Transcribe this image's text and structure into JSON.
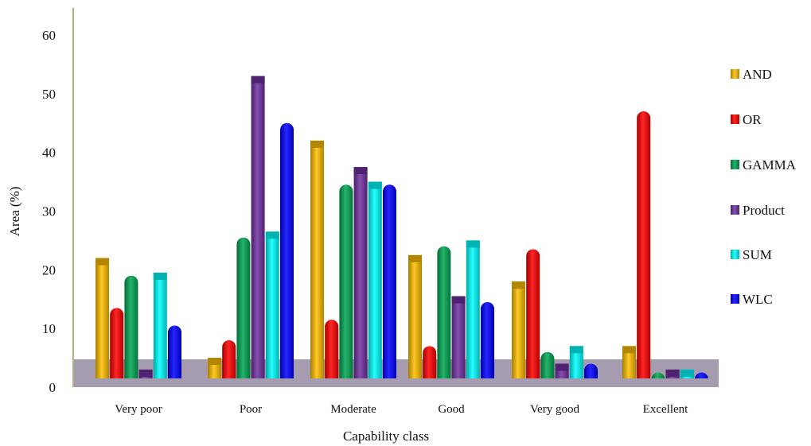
{
  "chart_data": {
    "type": "bar",
    "xlabel": "Capability class",
    "ylabel": "Area (%)",
    "ylim": [
      0,
      60
    ],
    "yticks": [
      "0",
      "10",
      "20",
      "30",
      "40",
      "50",
      "60"
    ],
    "grid": false,
    "legend_position": "right",
    "categories": [
      "Very poor",
      "Poor",
      "Moderate",
      "Good",
      "Very good",
      "Excellent"
    ],
    "series": [
      {
        "name": "AND",
        "color": "#FFC000",
        "values": [
          22,
          5,
          42,
          22.5,
          18,
          7
        ]
      },
      {
        "name": "OR",
        "color": "#FF0000",
        "values": [
          13.5,
          8,
          11.5,
          7,
          23.5,
          47
        ]
      },
      {
        "name": "GAMMA",
        "color": "#00A651",
        "values": [
          19,
          25.5,
          34.5,
          24,
          6,
          2.5
        ]
      },
      {
        "name": "Product",
        "color": "#7030A0",
        "values": [
          3,
          53,
          37.5,
          15.5,
          4,
          3
        ]
      },
      {
        "name": "SUM",
        "color": "#00FFFF",
        "values": [
          19.5,
          26.5,
          35,
          25,
          7,
          3
        ]
      },
      {
        "name": "WLC",
        "color": "#0000FF",
        "values": [
          10.5,
          45,
          34.5,
          14.5,
          4,
          2.5
        ]
      }
    ]
  }
}
